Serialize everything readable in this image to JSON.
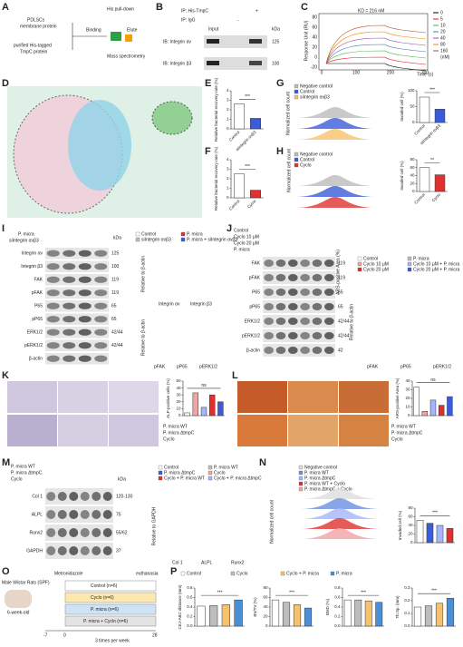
{
  "letters": [
    "A",
    "B",
    "C",
    "D",
    "E",
    "F",
    "G",
    "H",
    "I",
    "J",
    "K",
    "L",
    "M",
    "N",
    "O",
    "P"
  ],
  "panels": {
    "A": {
      "labels": [
        "PDLSCs",
        "membrane protein",
        "purified His-tagged",
        "TmpC protein",
        "Binding",
        "Elute",
        "His pull-down",
        "Mass spectrometry"
      ]
    },
    "B": {
      "labels": [
        "IP: His-TmpC",
        "IP: IgG",
        "Input",
        "-",
        "+",
        "kDa",
        "IB: Integrin αv",
        "IB: Integrin β3",
        "125",
        "100"
      ]
    },
    "C": {
      "kd": "KD = 216 nM",
      "ylabel": "Response Unit (RU)",
      "xlabel": "Time (s)",
      "xticks": [
        0,
        100,
        200,
        300
      ],
      "yticks": [
        -20,
        0,
        20,
        40,
        60,
        80
      ],
      "legend": [
        "0",
        "5",
        "10",
        "20",
        "40",
        "80",
        "160",
        "(nM)"
      ],
      "legend_colors": [
        "#000000",
        "#e41a1c",
        "#4daf4a",
        "#377eb8",
        "#984ea3",
        "#ff7f00",
        "#a65628"
      ]
    },
    "G": {
      "legend": [
        "Negative control",
        "Control",
        "siIntegrin αvβ3"
      ],
      "ylabel": "Normalized cell count"
    },
    "H": {
      "legend": [
        "Negative control",
        "Control",
        "Cyclo"
      ],
      "ylabel": "Normalized cell count"
    },
    "I": {
      "conditions": [
        "P. micra",
        "siIntegrin αvβ3"
      ],
      "rows": [
        "Integrin αv",
        "Integrin β3",
        "FAK",
        "pFAK",
        "P65",
        "pP65",
        "ERK1/2",
        "pERK1/2",
        "β-actin"
      ],
      "kda": [
        "125",
        "100",
        "119",
        "119",
        "65",
        "65",
        "42/44",
        "42/44"
      ],
      "kda_head": "kDa",
      "legend": [
        "Control",
        "P. micra",
        "siIntegrin αvβ3",
        "P. micra + siIntegrin αvβ3"
      ],
      "ylabel": "Relative to β-actin",
      "cats_top": [
        "Integrin αv",
        "Integrin β3"
      ],
      "cats_bottom": [
        "pFAK",
        "pP65",
        "pERK1/2"
      ]
    },
    "J": {
      "conditions": [
        "Control",
        "Cyclo 10 μM",
        "Cyclo 20 μM",
        "P. micra"
      ],
      "rows": [
        "FAK",
        "pFAK",
        "P65",
        "pP65",
        "ERK1/2",
        "pERK1/2",
        "β-actin"
      ],
      "kda": [
        "119",
        "119",
        "65",
        "65",
        "42/44",
        "42/44",
        "42"
      ],
      "ylabel": "Relative to β-actin",
      "ars": "ARS-positive Area (%)",
      "legend": [
        "Control",
        "P. micra",
        "Cyclo 10 μM",
        "Cyclo 10 μM + P. micra",
        "Cyclo 20 μM",
        "Cyclo 20 μM + P. micra"
      ],
      "cats": [
        "pFAK",
        "pP65",
        "pERK1/2"
      ]
    },
    "K": {
      "conditions": [
        "P. micra WT",
        "P. micra ΔtmpC",
        "Cyclo"
      ]
    },
    "L": {
      "conditions": [
        "P. micra WT",
        "P. micra ΔtmpC",
        "Cyclo"
      ]
    },
    "M": {
      "conditions": [
        "P. micra WT",
        "P. micra ΔtmpC",
        "Cyclo"
      ],
      "rows": [
        "Col 1",
        "ALPL",
        "Runx2",
        "GAPDH"
      ],
      "kda": [
        "120-130",
        "75",
        "55/62",
        "37"
      ],
      "kda_head": "kDa",
      "legend": [
        "Control",
        "P. micra WT",
        "P. micra ΔtmpC",
        "Cyclo",
        "Cyclo + P. micra WT",
        "Cyclo + P. micra ΔtmpC"
      ],
      "ylabel": "Relative to GAPDH",
      "cats": [
        "Col 1",
        "ALPL",
        "Runx2"
      ]
    },
    "N": {
      "legend": [
        "Negative control",
        "P. micra WT",
        "P. micra ΔtmpC",
        "P. micra WT + Cyclo",
        "P. micra ΔtmpC + Cyclo"
      ],
      "ylabel": "Normalized cell count"
    },
    "O": {
      "labels": [
        "Male Wistar Rats (SPF)",
        "6-week-old",
        "Metronidazole",
        "euthanasia",
        "3 times per week"
      ],
      "groups": [
        "Control (n=6)",
        "Cyclo (n=6)",
        "P. micra (n=6)",
        "P. micra + Cyclo (n=6)"
      ],
      "days": [
        "-7",
        "0",
        "28"
      ]
    },
    "P": {
      "legend": [
        "Control",
        "Cyclo",
        "Cyclo + P. micra",
        "P. micra"
      ],
      "colors": [
        "#ffffff",
        "#bdbdbd",
        "#f6c26b",
        "#4a90d9"
      ]
    }
  },
  "charts": [
    {
      "ylabel": "Relative bacterial recovery rate (%)",
      "categories": [
        "Control",
        "siIntegrin αvβ3"
      ],
      "values": [
        2.6,
        1.1
      ],
      "colors": [
        "#ffffff",
        "#3b5bdb"
      ],
      "ylim": [
        0,
        4
      ],
      "yticks": [
        0,
        1,
        2,
        3,
        4
      ],
      "sig": "***"
    },
    {
      "ylabel": "Relative bacterial recovery rate (%)",
      "categories": [
        "Control",
        "Cyclo"
      ],
      "values": [
        2.5,
        0.8
      ],
      "colors": [
        "#ffffff",
        "#e03131"
      ],
      "ylim": [
        0,
        4
      ],
      "yticks": [
        0,
        1,
        2,
        3,
        4
      ],
      "sig": "***"
    },
    {
      "ylabel": "Invaded cell (%)",
      "categories": [
        "Control",
        "siIntegrin αvβ3"
      ],
      "values": [
        80,
        42
      ],
      "colors": [
        "#ffffff",
        "#3b5bdb"
      ],
      "ylim": [
        0,
        100
      ],
      "yticks": [
        0,
        50,
        100
      ],
      "sig": "***"
    },
    {
      "ylabel": "Invaded cell (%)",
      "categories": [
        "Control",
        "Cyclo"
      ],
      "values": [
        60,
        42
      ],
      "colors": [
        "#ffffff",
        "#e03131"
      ],
      "ylim": [
        0,
        80
      ],
      "yticks": [
        0,
        20,
        40,
        60,
        80
      ],
      "sig": "**"
    },
    {
      "ylabel": "ALP-positive cells (%)",
      "values": [
        4,
        33,
        12,
        30,
        20
      ],
      "colors": [
        "#ffffff",
        "#f4a3a3",
        "#a5b4fc",
        "#e03131",
        "#3b5bdb"
      ],
      "ylim": [
        0,
        50
      ],
      "yticks": [
        0,
        10,
        20,
        30,
        40,
        50
      ],
      "sig": "ns"
    },
    {
      "ylabel": "ARS-positive Area (%)",
      "values": [
        33,
        5,
        18,
        12,
        22
      ],
      "colors": [
        "#ffffff",
        "#f4a3a3",
        "#a5b4fc",
        "#e03131",
        "#3b5bdb"
      ],
      "ylim": [
        0,
        40
      ],
      "yticks": [
        0,
        10,
        20,
        30,
        40
      ],
      "sig": "ns"
    },
    {
      "ylabel": "Invaded cell (%)",
      "values": [
        52,
        45,
        40,
        33
      ],
      "colors": [
        "#ffffff",
        "#3b5bdb",
        "#a5b4fc",
        "#e03131"
      ],
      "ylim": [
        0,
        80
      ],
      "yticks": [
        0,
        20,
        40,
        60,
        80
      ],
      "sig": "***"
    },
    {
      "ylabel": "CEJ-ABC distance (mm)",
      "values": [
        0.42,
        0.43,
        0.45,
        0.55
      ],
      "colors": [
        "#ffffff",
        "#bdbdbd",
        "#f6c26b",
        "#4a90d9"
      ],
      "ylim": [
        0,
        0.8
      ],
      "yticks": [
        {
          "value": 0,
          "label": "0.0"
        },
        0.2,
        0.4,
        0.6,
        0.8
      ],
      "sig": "***"
    },
    {
      "ylabel": "BV/TV (%)",
      "values": [
        55,
        50,
        45,
        38
      ],
      "colors": [
        "#ffffff",
        "#bdbdbd",
        "#f6c26b",
        "#4a90d9"
      ],
      "ylim": [
        0,
        80
      ],
      "yticks": [
        0,
        20,
        40,
        60,
        80
      ],
      "sig": "***"
    },
    {
      "ylabel": "BMD (%)",
      "values": [
        0.55,
        0.55,
        0.53,
        0.5
      ],
      "colors": [
        "#ffffff",
        "#bdbdbd",
        "#f6c26b",
        "#4a90d9"
      ],
      "ylim": [
        0,
        0.8
      ],
      "yticks": [
        {
          "value": 0,
          "label": "0.0"
        },
        0.2,
        0.4,
        0.6,
        0.8
      ],
      "sig": "***"
    },
    {
      "ylabel": "Tb.Sp. (mm)",
      "values": [
        0.15,
        0.16,
        0.18,
        0.22
      ],
      "colors": [
        "#ffffff",
        "#bdbdbd",
        "#f6c26b",
        "#4a90d9"
      ],
      "ylim": [
        0,
        0.3
      ],
      "yticks": [
        {
          "value": 0,
          "label": "0.0"
        },
        0.1,
        0.2,
        0.3
      ],
      "sig": "***"
    }
  ]
}
